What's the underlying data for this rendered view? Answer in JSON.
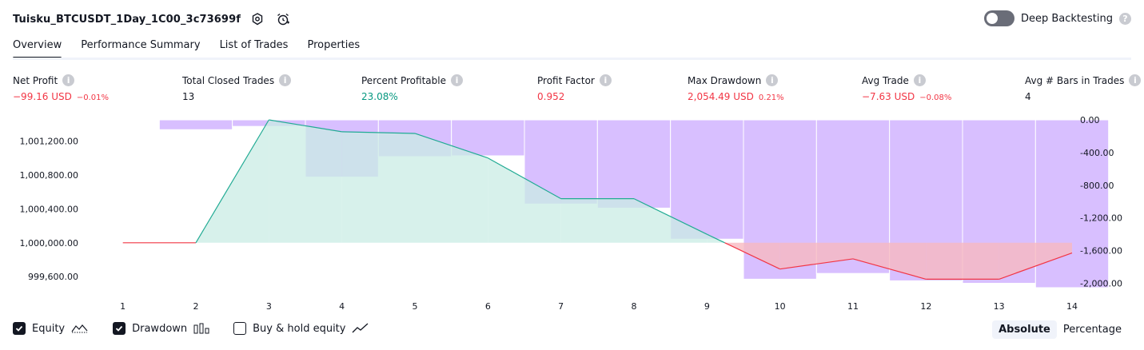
{
  "header": {
    "title": "Tuisku_BTCUSDT_1Day_1C00_3c73699f",
    "deep_backtesting_label": "Deep Backtesting",
    "help_glyph": "?"
  },
  "tabs": [
    "Overview",
    "Performance Summary",
    "List of Trades",
    "Properties"
  ],
  "metrics": [
    {
      "label": "Net Profit",
      "value": "−99.16 USD",
      "pct": "−0.01%",
      "tone": "neg"
    },
    {
      "label": "Total Closed Trades",
      "value": "13",
      "pct": "",
      "tone": "neutral"
    },
    {
      "label": "Percent Profitable",
      "value": "23.08%",
      "pct": "",
      "tone": "pos"
    },
    {
      "label": "Profit Factor",
      "value": "0.952",
      "pct": "",
      "tone": "neg"
    },
    {
      "label": "Max Drawdown",
      "value": "2,054.49 USD",
      "pct": "0.21%",
      "tone": "neg"
    },
    {
      "label": "Avg Trade",
      "value": "−7.63 USD",
      "pct": "−0.08%",
      "tone": "neg"
    },
    {
      "label": "Avg # Bars in Trades",
      "value": "4",
      "pct": "",
      "tone": "neutral"
    }
  ],
  "chart_data": {
    "type": "line",
    "x": [
      1,
      2,
      3,
      4,
      5,
      6,
      7,
      8,
      9,
      10,
      11,
      12,
      13,
      14
    ],
    "series": [
      {
        "name": "Equity",
        "values": [
          1000000,
          1000000,
          1001450,
          1001310,
          1001290,
          1001000,
          1000520,
          1000520,
          1000100,
          999690,
          999810,
          999570,
          999570,
          999880
        ]
      },
      {
        "name": "Drawdown",
        "values": [
          0,
          -120,
          -80,
          -700,
          -450,
          -440,
          -1030,
          -1080,
          -1460,
          -1950,
          -1880,
          -1970,
          -2000,
          -2054
        ]
      }
    ],
    "left_ticks": [
      "1,001,200.00",
      "1,000,800.00",
      "1,000,400.00",
      "1,000,000.00",
      "999,600.00"
    ],
    "left_tick_values": [
      1001200,
      1000800,
      1000400,
      1000000,
      999600
    ],
    "right_ticks": [
      "0.00",
      "-400.00",
      "-800.00",
      "-1,200.00",
      "-1,600.00",
      "-2,000.00"
    ],
    "right_tick_values": [
      0,
      -400,
      -800,
      -1200,
      -1600,
      -2000
    ],
    "left_range": [
      999470,
      1001450
    ],
    "right_range": [
      -2054,
      0
    ],
    "colors": {
      "equity_up": "#22ab94",
      "equity_down": "#f23645",
      "drawdown": "#c9a6ff",
      "area_up": "#c9ece4",
      "area_down": "#f8b9c0"
    }
  },
  "bottom": {
    "checks": [
      {
        "label": "Equity",
        "checked": true,
        "icon": "equity-icon"
      },
      {
        "label": "Drawdown",
        "checked": true,
        "icon": "drawdown-icon"
      },
      {
        "label": "Buy & hold equity",
        "checked": false,
        "icon": "buy-hold-icon"
      }
    ],
    "segment": [
      "Absolute",
      "Percentage"
    ]
  }
}
